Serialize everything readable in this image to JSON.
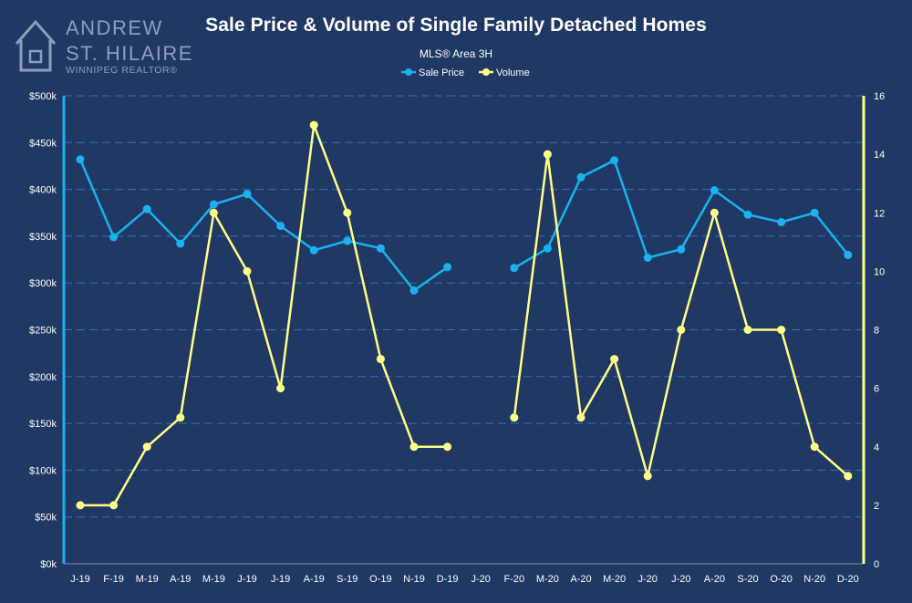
{
  "brand": {
    "line1": "ANDREW",
    "line2": "ST. HILAIRE",
    "line3": "WINNIPEG REALTOR®"
  },
  "colors": {
    "background": "#203864",
    "sale_price": "#1ab2f0",
    "volume": "#ffff88",
    "grid": "#2e75b6",
    "axis_text": "#ffffff"
  },
  "chart_data": {
    "type": "line",
    "title": "Sale Price & Volume of Single Family Detached Homes",
    "subtitle": "MLS® Area 3H",
    "legend_position": "top-center",
    "grid": true,
    "categories": [
      "J-19",
      "F-19",
      "M-19",
      "A-19",
      "M-19",
      "J-19",
      "J-19",
      "A-19",
      "S-19",
      "O-19",
      "N-19",
      "D-19",
      "J-20",
      "F-20",
      "M-20",
      "A-20",
      "M-20",
      "J-20",
      "J-20",
      "A-20",
      "S-20",
      "O-20",
      "N-20",
      "D-20"
    ],
    "y_left": {
      "ylim": [
        0,
        500000
      ],
      "ticks": [
        "$0k",
        "$50k",
        "$100k",
        "$150k",
        "$200k",
        "$250k",
        "$300k",
        "$350k",
        "$400k",
        "$450k",
        "$500k"
      ]
    },
    "y_right": {
      "ylim": [
        0,
        16
      ],
      "ticks": [
        "0",
        "2",
        "4",
        "6",
        "8",
        "10",
        "12",
        "14",
        "16"
      ]
    },
    "series": [
      {
        "name": "Sale Price",
        "axis": "left",
        "color": "#1ab2f0",
        "values": [
          432000,
          349000,
          379000,
          342000,
          384000,
          395000,
          361000,
          335000,
          345000,
          337000,
          292000,
          317000,
          null,
          316000,
          337000,
          413000,
          431000,
          327000,
          336000,
          399000,
          373000,
          365000,
          375000,
          330000
        ]
      },
      {
        "name": "Volume",
        "axis": "right",
        "color": "#ffff88",
        "values": [
          2,
          2,
          4,
          5,
          12,
          10,
          6,
          15,
          12,
          7,
          4,
          4,
          null,
          5,
          14,
          5,
          7,
          3,
          8,
          12,
          8,
          8,
          4,
          3
        ]
      }
    ]
  }
}
